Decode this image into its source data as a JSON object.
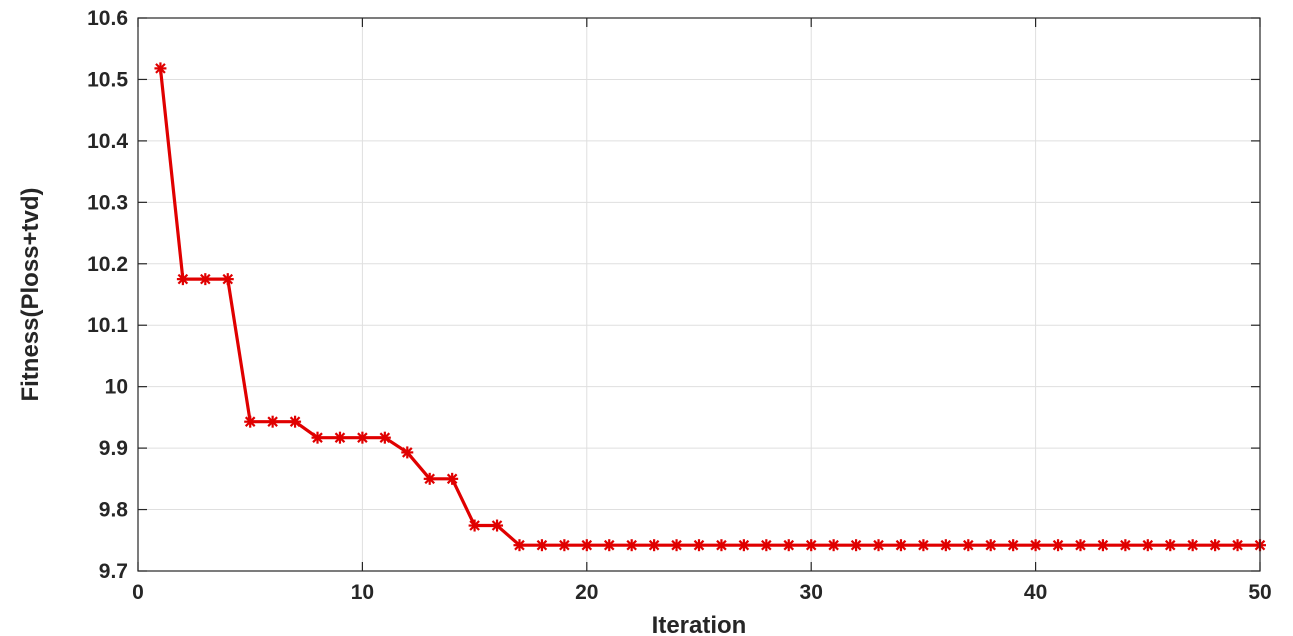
{
  "chart_data": {
    "type": "line",
    "title": "",
    "xlabel": "Iteration",
    "ylabel": "Fitness(Ploss+tvd)",
    "xlim": [
      0,
      50
    ],
    "ylim": [
      9.7,
      10.6
    ],
    "xticks": [
      "0",
      "10",
      "20",
      "30",
      "40",
      "50"
    ],
    "yticks": [
      "9.7",
      "9.8",
      "9.9",
      "10",
      "10.1",
      "10.2",
      "10.3",
      "10.4",
      "10.5",
      "10.6"
    ],
    "grid": true,
    "series": [
      {
        "color": "#e00000",
        "marker": "asterisk",
        "x": [
          1,
          2,
          3,
          4,
          5,
          6,
          7,
          8,
          9,
          10,
          11,
          12,
          13,
          14,
          15,
          16,
          17,
          18,
          19,
          20,
          21,
          22,
          23,
          24,
          25,
          26,
          27,
          28,
          29,
          30,
          31,
          32,
          33,
          34,
          35,
          36,
          37,
          38,
          39,
          40,
          41,
          42,
          43,
          44,
          45,
          46,
          47,
          48,
          49,
          50
        ],
        "values": [
          10.518,
          10.175,
          10.175,
          10.175,
          9.943,
          9.943,
          9.943,
          9.917,
          9.917,
          9.917,
          9.917,
          9.893,
          9.85,
          9.85,
          9.774,
          9.774,
          9.742,
          9.742,
          9.742,
          9.742,
          9.742,
          9.742,
          9.742,
          9.742,
          9.742,
          9.742,
          9.742,
          9.742,
          9.742,
          9.742,
          9.742,
          9.742,
          9.742,
          9.742,
          9.742,
          9.742,
          9.742,
          9.742,
          9.742,
          9.742,
          9.742,
          9.742,
          9.742,
          9.742,
          9.742,
          9.742,
          9.742,
          9.742,
          9.742,
          9.742
        ]
      }
    ]
  }
}
